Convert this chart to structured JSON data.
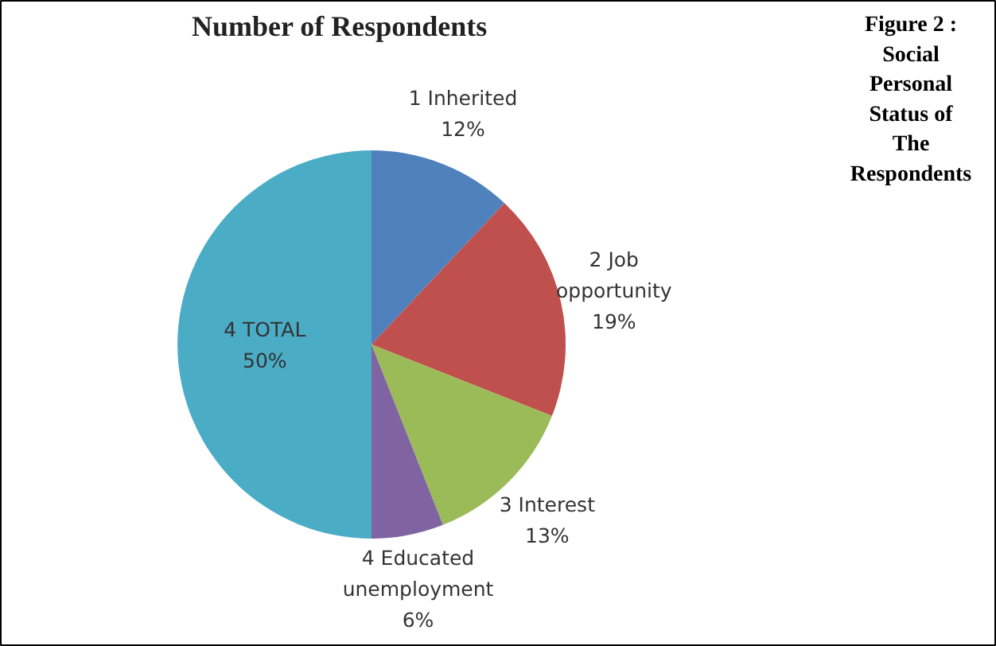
{
  "chart_data": {
    "type": "pie",
    "title": "Number of Respondents",
    "categories": [
      "1 Inherited",
      "2 Job opportunity",
      "3 Interest",
      "4 Educated unemployment",
      "4 TOTAL"
    ],
    "values": [
      12,
      19,
      13,
      6,
      50
    ],
    "value_labels": [
      "12%",
      "19%",
      "13%",
      "6%",
      "50%"
    ],
    "colors": [
      "#4f81bd",
      "#c0504d",
      "#9bbb59",
      "#8064a2",
      "#4bacc6"
    ],
    "annotations": [
      "Figure 2 : Social Personal Status of The Respondents"
    ]
  }
}
